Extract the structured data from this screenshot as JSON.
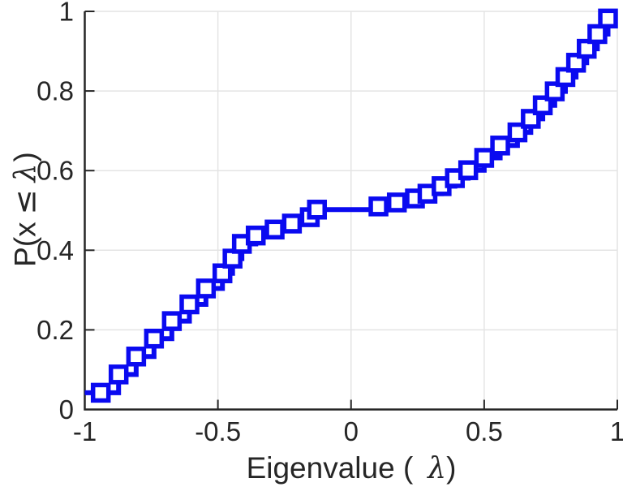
{
  "figure": {
    "background": "#ffffff",
    "xlabel": {
      "prefix": "Eigenvalue (",
      "lambda": "λ",
      "suffix": ")"
    },
    "ylabel": {
      "prefix": "P(x",
      "leq": "≤",
      "lambda": "λ",
      "suffix": ")"
    }
  },
  "style": {
    "axis_color": "#262626",
    "grid_color": "#e4e4e4",
    "tick_label_color": "#262626",
    "line_color": "#0a0af0",
    "marker_fill": "#ffffff"
  },
  "chart_data": {
    "type": "line",
    "subtype": "ecdf-stairs",
    "title": "",
    "xlabel": "Eigenvalue ( λ)",
    "ylabel": "P(x ≤ λ)",
    "xlim": [
      -1,
      1
    ],
    "ylim": [
      0,
      1
    ],
    "xticks": [
      -1,
      -0.5,
      0,
      0.5,
      1
    ],
    "xtick_labels": [
      "-1",
      "-0.5",
      "0",
      "0.5",
      "1"
    ],
    "yticks": [
      0,
      0.2,
      0.4,
      0.6,
      0.8,
      1
    ],
    "ytick_labels": [
      "0",
      "0.2",
      "0.4",
      "0.6",
      "0.8",
      "1"
    ],
    "grid": true,
    "legend": null,
    "marker": "open-square",
    "line_width": 6,
    "lead_in_x": -1,
    "points": [
      [
        -0.94,
        0.042
      ],
      [
        -0.873,
        0.088
      ],
      [
        -0.807,
        0.133
      ],
      [
        -0.74,
        0.178
      ],
      [
        -0.673,
        0.222
      ],
      [
        -0.607,
        0.264
      ],
      [
        -0.545,
        0.304
      ],
      [
        -0.483,
        0.342
      ],
      [
        -0.445,
        0.379
      ],
      [
        -0.41,
        0.416
      ],
      [
        -0.358,
        0.437
      ],
      [
        -0.287,
        0.452
      ],
      [
        -0.222,
        0.467
      ],
      [
        -0.155,
        0.483
      ],
      [
        -0.128,
        0.502
      ],
      [
        0.103,
        0.51
      ],
      [
        0.172,
        0.52
      ],
      [
        0.24,
        0.53
      ],
      [
        0.287,
        0.542
      ],
      [
        0.34,
        0.561
      ],
      [
        0.39,
        0.581
      ],
      [
        0.44,
        0.601
      ],
      [
        0.5,
        0.632
      ],
      [
        0.56,
        0.663
      ],
      [
        0.625,
        0.696
      ],
      [
        0.675,
        0.73
      ],
      [
        0.72,
        0.764
      ],
      [
        0.765,
        0.799
      ],
      [
        0.805,
        0.835
      ],
      [
        0.845,
        0.871
      ],
      [
        0.885,
        0.906
      ],
      [
        0.925,
        0.943
      ],
      [
        0.965,
        0.982
      ]
    ]
  }
}
